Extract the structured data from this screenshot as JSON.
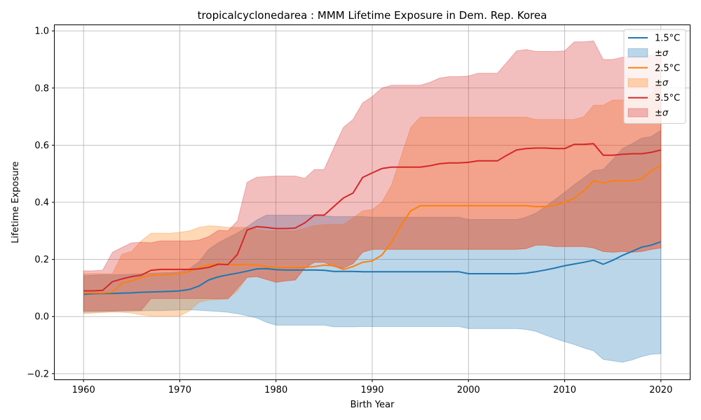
{
  "chart_data": {
    "type": "area",
    "title": "tropicalcyclonedarea : MMM Lifetime Exposure in Dem. Rep. Korea",
    "xlabel": "Birth Year",
    "ylabel": "Lifetime Exposure",
    "xlim": [
      1957,
      2023
    ],
    "ylim": [
      -0.22,
      1.02
    ],
    "xticks": [
      1960,
      1970,
      1980,
      1990,
      2000,
      2010,
      2020
    ],
    "yticks": [
      -0.2,
      0.0,
      0.2,
      0.4,
      0.6,
      0.8,
      1.0
    ],
    "grid": true,
    "legend_position": "top-right",
    "x": [
      1960,
      1961,
      1962,
      1963,
      1964,
      1965,
      1966,
      1967,
      1968,
      1969,
      1970,
      1971,
      1972,
      1973,
      1974,
      1975,
      1976,
      1977,
      1978,
      1979,
      1980,
      1981,
      1982,
      1983,
      1984,
      1985,
      1986,
      1987,
      1988,
      1989,
      1990,
      1991,
      1992,
      1993,
      1994,
      1995,
      1996,
      1997,
      1998,
      1999,
      2000,
      2001,
      2002,
      2003,
      2004,
      2005,
      2006,
      2007,
      2008,
      2009,
      2010,
      2011,
      2012,
      2013,
      2014,
      2015,
      2016,
      2017,
      2018,
      2019,
      2020
    ],
    "series": [
      {
        "name": "1.5°C",
        "band_label": "±σ",
        "color": "#1f77b4",
        "band_color": "#1f77b4",
        "mean": [
          0.078,
          0.08,
          0.081,
          0.081,
          0.082,
          0.083,
          0.085,
          0.086,
          0.087,
          0.088,
          0.09,
          0.095,
          0.107,
          0.128,
          0.139,
          0.146,
          0.152,
          0.159,
          0.167,
          0.168,
          0.164,
          0.163,
          0.163,
          0.163,
          0.163,
          0.162,
          0.158,
          0.158,
          0.158,
          0.157,
          0.157,
          0.157,
          0.157,
          0.157,
          0.157,
          0.157,
          0.157,
          0.157,
          0.157,
          0.157,
          0.15,
          0.15,
          0.15,
          0.15,
          0.15,
          0.15,
          0.152,
          0.157,
          0.163,
          0.17,
          0.178,
          0.184,
          0.19,
          0.197,
          0.183,
          0.197,
          0.214,
          0.228,
          0.243,
          0.25,
          0.262
        ],
        "lower": [
          0.015,
          0.016,
          0.017,
          0.018,
          0.018,
          0.019,
          0.02,
          0.021,
          0.021,
          0.022,
          0.023,
          0.023,
          0.022,
          0.02,
          0.018,
          0.015,
          0.01,
          0.003,
          -0.005,
          -0.02,
          -0.03,
          -0.03,
          -0.03,
          -0.03,
          -0.03,
          -0.03,
          -0.036,
          -0.036,
          -0.036,
          -0.035,
          -0.035,
          -0.035,
          -0.035,
          -0.035,
          -0.035,
          -0.035,
          -0.035,
          -0.035,
          -0.035,
          -0.035,
          -0.042,
          -0.042,
          -0.042,
          -0.042,
          -0.042,
          -0.042,
          -0.045,
          -0.052,
          -0.065,
          -0.077,
          -0.088,
          -0.098,
          -0.11,
          -0.12,
          -0.15,
          -0.155,
          -0.16,
          -0.152,
          -0.14,
          -0.132,
          -0.13
        ],
        "upper": [
          0.143,
          0.145,
          0.146,
          0.146,
          0.147,
          0.148,
          0.15,
          0.152,
          0.153,
          0.154,
          0.157,
          0.168,
          0.192,
          0.235,
          0.258,
          0.276,
          0.293,
          0.314,
          0.338,
          0.355,
          0.355,
          0.355,
          0.355,
          0.355,
          0.355,
          0.353,
          0.35,
          0.35,
          0.35,
          0.35,
          0.348,
          0.348,
          0.348,
          0.348,
          0.348,
          0.348,
          0.348,
          0.348,
          0.348,
          0.348,
          0.34,
          0.34,
          0.34,
          0.34,
          0.34,
          0.34,
          0.348,
          0.362,
          0.385,
          0.41,
          0.435,
          0.462,
          0.486,
          0.512,
          0.515,
          0.55,
          0.588,
          0.605,
          0.625,
          0.63,
          0.652
        ]
      },
      {
        "name": "2.5°C",
        "band_label": "±σ",
        "color": "#ff7f0e",
        "band_color": "#ff7f0e",
        "mean": [
          0.083,
          0.083,
          0.083,
          0.085,
          0.117,
          0.125,
          0.137,
          0.145,
          0.146,
          0.148,
          0.15,
          0.158,
          0.172,
          0.182,
          0.185,
          0.182,
          0.182,
          0.182,
          0.18,
          0.175,
          0.172,
          0.172,
          0.172,
          0.172,
          0.175,
          0.18,
          0.178,
          0.165,
          0.175,
          0.19,
          0.195,
          0.215,
          0.26,
          0.32,
          0.37,
          0.388,
          0.388,
          0.388,
          0.388,
          0.388,
          0.388,
          0.388,
          0.388,
          0.388,
          0.388,
          0.388,
          0.388,
          0.385,
          0.385,
          0.39,
          0.4,
          0.415,
          0.44,
          0.475,
          0.468,
          0.475,
          0.475,
          0.475,
          0.482,
          0.51,
          0.53
        ],
        "lower": [
          0.01,
          0.012,
          0.014,
          0.016,
          0.015,
          0.012,
          0.006,
          0.002,
          0.002,
          0.002,
          0.002,
          0.02,
          0.05,
          0.058,
          0.06,
          0.062,
          0.09,
          0.137,
          0.14,
          0.13,
          0.12,
          0.125,
          0.128,
          0.17,
          0.19,
          0.19,
          0.175,
          0.17,
          0.185,
          0.225,
          0.235,
          0.235,
          0.235,
          0.235,
          0.235,
          0.235,
          0.235,
          0.235,
          0.235,
          0.235,
          0.235,
          0.235,
          0.235,
          0.235,
          0.235,
          0.235,
          0.238,
          0.25,
          0.25,
          0.245,
          0.245,
          0.245,
          0.245,
          0.24,
          0.228,
          0.225,
          0.228,
          0.225,
          0.228,
          0.235,
          0.24
        ],
        "upper": [
          0.15,
          0.15,
          0.15,
          0.15,
          0.218,
          0.228,
          0.265,
          0.292,
          0.292,
          0.292,
          0.295,
          0.3,
          0.312,
          0.318,
          0.316,
          0.312,
          0.312,
          0.312,
          0.305,
          0.3,
          0.3,
          0.3,
          0.3,
          0.31,
          0.318,
          0.322,
          0.322,
          0.322,
          0.345,
          0.37,
          0.375,
          0.4,
          0.46,
          0.56,
          0.662,
          0.698,
          0.698,
          0.698,
          0.698,
          0.698,
          0.698,
          0.698,
          0.698,
          0.698,
          0.698,
          0.698,
          0.698,
          0.69,
          0.69,
          0.69,
          0.69,
          0.69,
          0.7,
          0.74,
          0.74,
          0.758,
          0.758,
          0.758,
          0.76,
          0.78,
          0.83
        ]
      },
      {
        "name": "3.5°C",
        "band_label": "±σ",
        "color": "#d62728",
        "band_color": "#d62728",
        "mean": [
          0.09,
          0.09,
          0.092,
          0.122,
          0.132,
          0.14,
          0.145,
          0.162,
          0.165,
          0.165,
          0.165,
          0.165,
          0.167,
          0.172,
          0.183,
          0.182,
          0.218,
          0.303,
          0.315,
          0.312,
          0.308,
          0.308,
          0.31,
          0.328,
          0.355,
          0.355,
          0.385,
          0.415,
          0.432,
          0.487,
          0.503,
          0.518,
          0.523,
          0.523,
          0.523,
          0.523,
          0.528,
          0.535,
          0.538,
          0.538,
          0.54,
          0.545,
          0.545,
          0.545,
          0.565,
          0.583,
          0.588,
          0.59,
          0.59,
          0.588,
          0.588,
          0.603,
          0.603,
          0.605,
          0.565,
          0.565,
          0.568,
          0.57,
          0.57,
          0.575,
          0.583
        ],
        "lower": [
          0.02,
          0.02,
          0.02,
          0.02,
          0.022,
          0.022,
          0.022,
          0.063,
          0.063,
          0.063,
          0.063,
          0.063,
          0.063,
          0.063,
          0.062,
          0.062,
          0.1,
          0.137,
          0.14,
          0.13,
          0.12,
          0.125,
          0.128,
          0.17,
          0.19,
          0.19,
          0.175,
          0.17,
          0.185,
          0.225,
          0.235,
          0.235,
          0.235,
          0.235,
          0.235,
          0.235,
          0.235,
          0.235,
          0.235,
          0.235,
          0.235,
          0.235,
          0.235,
          0.235,
          0.235,
          0.235,
          0.238,
          0.25,
          0.25,
          0.245,
          0.245,
          0.245,
          0.245,
          0.24,
          0.228,
          0.225,
          0.228,
          0.225,
          0.228,
          0.235,
          0.24
        ],
        "upper": [
          0.16,
          0.16,
          0.163,
          0.225,
          0.242,
          0.258,
          0.26,
          0.258,
          0.265,
          0.265,
          0.265,
          0.265,
          0.268,
          0.28,
          0.302,
          0.3,
          0.335,
          0.47,
          0.488,
          0.49,
          0.492,
          0.492,
          0.492,
          0.484,
          0.515,
          0.515,
          0.59,
          0.662,
          0.69,
          0.748,
          0.77,
          0.8,
          0.81,
          0.81,
          0.81,
          0.81,
          0.82,
          0.835,
          0.84,
          0.84,
          0.842,
          0.852,
          0.852,
          0.852,
          0.89,
          0.93,
          0.935,
          0.928,
          0.928,
          0.928,
          0.93,
          0.962,
          0.962,
          0.965,
          0.9,
          0.9,
          0.908,
          0.91,
          0.91,
          0.915,
          0.93
        ]
      }
    ]
  }
}
